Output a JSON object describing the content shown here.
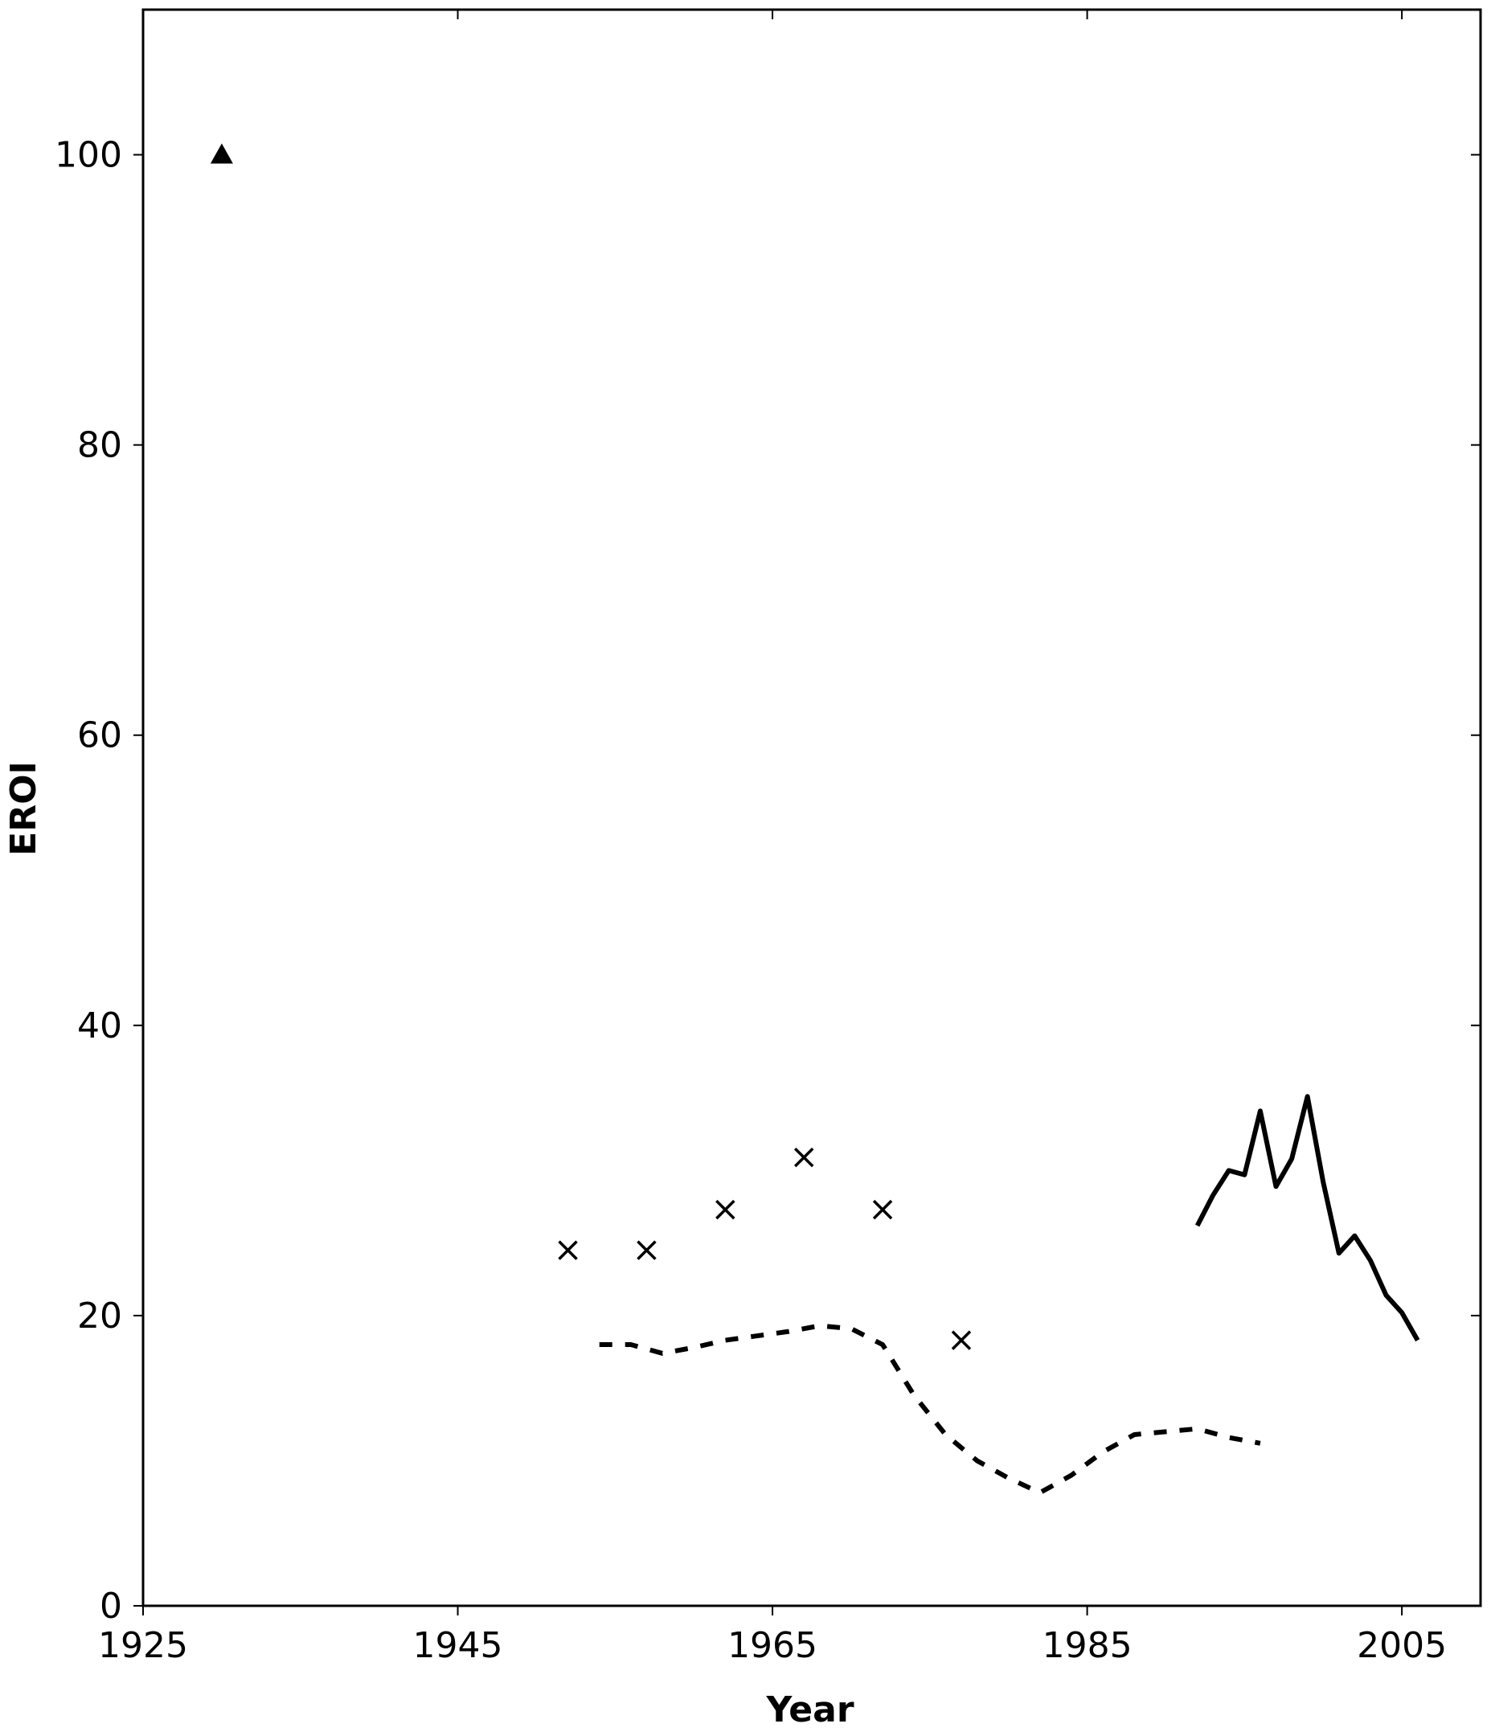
{
  "chart_data": {
    "type": "scatter",
    "xlabel": "Year",
    "ylabel": "EROI",
    "xlim": [
      1925,
      2010
    ],
    "ylim": [
      0,
      110
    ],
    "x_ticks": [
      1925,
      1945,
      1965,
      1985,
      2005
    ],
    "y_ticks": [
      0,
      20,
      40,
      60,
      80,
      100
    ],
    "grid": false,
    "legend": "none",
    "series": [
      {
        "marker": "triangle",
        "line": "none",
        "points": [
          {
            "x": 1930,
            "y": 100
          }
        ]
      },
      {
        "marker": "x",
        "line": "none",
        "points": [
          {
            "x": 1952,
            "y": 24.5
          },
          {
            "x": 1957,
            "y": 24.5
          },
          {
            "x": 1962,
            "y": 27.3
          },
          {
            "x": 1967,
            "y": 30.9
          },
          {
            "x": 1972,
            "y": 27.3
          },
          {
            "x": 1977,
            "y": 18.3
          }
        ]
      },
      {
        "marker": "none",
        "line": "dashed",
        "points": [
          {
            "x": 1954,
            "y": 18
          },
          {
            "x": 1956,
            "y": 18
          },
          {
            "x": 1958,
            "y": 17.4
          },
          {
            "x": 1960,
            "y": 17.8
          },
          {
            "x": 1962,
            "y": 18.3
          },
          {
            "x": 1964,
            "y": 18.6
          },
          {
            "x": 1966,
            "y": 18.9
          },
          {
            "x": 1968,
            "y": 19.3
          },
          {
            "x": 1970,
            "y": 19.1
          },
          {
            "x": 1972,
            "y": 18
          },
          {
            "x": 1974,
            "y": 14.5
          },
          {
            "x": 1976,
            "y": 11.8
          },
          {
            "x": 1978,
            "y": 10
          },
          {
            "x": 1980,
            "y": 8.8
          },
          {
            "x": 1982,
            "y": 7.8
          },
          {
            "x": 1984,
            "y": 9
          },
          {
            "x": 1986,
            "y": 10.6
          },
          {
            "x": 1988,
            "y": 11.8
          },
          {
            "x": 1990,
            "y": 12
          },
          {
            "x": 1992,
            "y": 12.2
          },
          {
            "x": 1994,
            "y": 11.6
          },
          {
            "x": 1996,
            "y": 11.2
          }
        ]
      },
      {
        "marker": "none",
        "line": "solid",
        "points": [
          {
            "x": 1992,
            "y": 26.2
          },
          {
            "x": 1993,
            "y": 28.3
          },
          {
            "x": 1994,
            "y": 30
          },
          {
            "x": 1995,
            "y": 29.7
          },
          {
            "x": 1996,
            "y": 34.1
          },
          {
            "x": 1997,
            "y": 28.9
          },
          {
            "x": 1998,
            "y": 30.8
          },
          {
            "x": 1999,
            "y": 35.1
          },
          {
            "x": 2000,
            "y": 29.2
          },
          {
            "x": 2001,
            "y": 24.3
          },
          {
            "x": 2002,
            "y": 25.5
          },
          {
            "x": 2003,
            "y": 23.8
          },
          {
            "x": 2004,
            "y": 21.4
          },
          {
            "x": 2005,
            "y": 20.2
          },
          {
            "x": 2006,
            "y": 18.3
          }
        ]
      }
    ]
  }
}
